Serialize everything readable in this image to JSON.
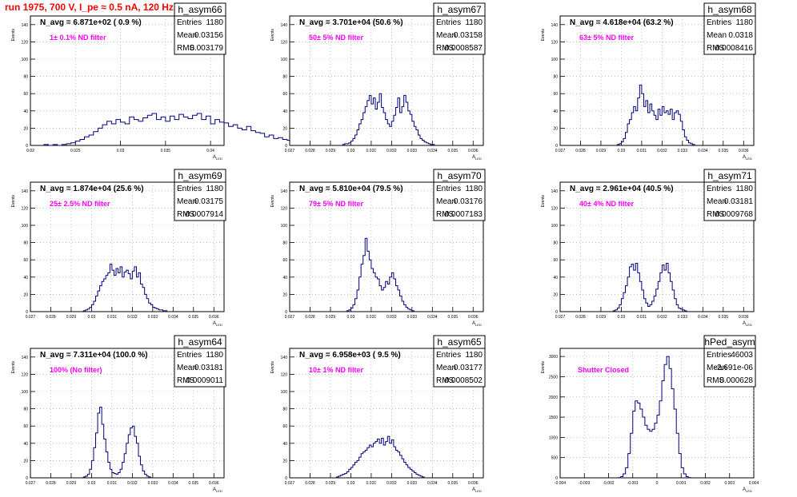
{
  "page_title": "run 1975,   700 V, I_pe ≈ 0.5 nA, 120 Hz",
  "colors": {
    "title": "#ff0000",
    "annotation": "#ff00ff",
    "histogram": "#000080",
    "grid": "#999999",
    "frame": "#000000"
  },
  "chart_data": [
    {
      "type": "bar",
      "title": "h_asym66",
      "nav_label": "N_avg = 6.871e+02 ( 0.9 %)",
      "annotation": "1± 0.1% ND filter",
      "ylabel": "Events",
      "xlabel": "A_LED",
      "stats": {
        "entries_label": "Entries",
        "entries": "1180",
        "mean_label": "Mean",
        "mean": "0.03156",
        "rms_label": "RMS",
        "rms": "0.003179"
      },
      "xlim": [
        0.02,
        0.0415
      ],
      "ylim": [
        0,
        150
      ],
      "xticks": [
        "0.02",
        "0.025",
        "0.03",
        "0.035",
        "0.04"
      ],
      "yticks": [
        "0",
        "20",
        "40",
        "60",
        "80",
        "100",
        "120",
        "140"
      ],
      "bin_start": 0.0215,
      "bin_width": 0.0005,
      "values": [
        1,
        0,
        1,
        0,
        1,
        2,
        3,
        5,
        7,
        10,
        12,
        16,
        20,
        24,
        28,
        25,
        30,
        27,
        25,
        33,
        30,
        28,
        32,
        35,
        37,
        30,
        33,
        28,
        34,
        30,
        36,
        33,
        31,
        35,
        37,
        30,
        34,
        25,
        30,
        27,
        26,
        22,
        24,
        20,
        18,
        22,
        17,
        15,
        14,
        10,
        12,
        8,
        9,
        7,
        6,
        5,
        4,
        3,
        3,
        2,
        1,
        1,
        0,
        1,
        0
      ]
    },
    {
      "type": "bar",
      "title": "h_asym67",
      "nav_label": "N_avg = 3.701e+04 (50.6 %)",
      "annotation": "50± 5% ND filter",
      "ylabel": "Events",
      "xlabel": "A_LED",
      "stats": {
        "entries_label": "Entries",
        "entries": "1180",
        "mean_label": "Mean",
        "mean": "0.03158",
        "rms_label": "RMS",
        "rms": "0.0008587"
      },
      "xlim": [
        0.027,
        0.0365
      ],
      "ylim": [
        0,
        150
      ],
      "xticks": [
        "0.027",
        "0.028",
        "0.029",
        "0.03",
        "0.031",
        "0.032",
        "0.033",
        "0.034",
        "0.035",
        "0.036"
      ],
      "yticks": [
        "0",
        "20",
        "40",
        "60",
        "80",
        "100",
        "120",
        "140"
      ],
      "bin_start": 0.0296,
      "bin_width": 0.0001,
      "values": [
        1,
        2,
        2,
        3,
        5,
        8,
        12,
        18,
        25,
        30,
        38,
        45,
        52,
        58,
        48,
        55,
        42,
        50,
        60,
        44,
        38,
        30,
        25,
        22,
        28,
        35,
        44,
        55,
        38,
        45,
        58,
        50,
        40,
        36,
        28,
        22,
        18,
        12,
        8,
        6,
        4,
        3,
        2,
        1,
        1
      ]
    },
    {
      "type": "bar",
      "title": "h_asym68",
      "nav_label": "N_avg = 4.618e+04 (63.2 %)",
      "annotation": "63± 5% ND filter",
      "ylabel": "Events",
      "xlabel": "A_LED",
      "stats": {
        "entries_label": "Entries",
        "entries": "1180",
        "mean_label": "Mean",
        "mean": "0.0318",
        "rms_label": "RMS",
        "rms": "0.0008416"
      },
      "xlim": [
        0.027,
        0.0365
      ],
      "ylim": [
        0,
        150
      ],
      "xticks": [
        "0.027",
        "0.028",
        "0.029",
        "0.03",
        "0.031",
        "0.032",
        "0.033",
        "0.034",
        "0.035",
        "0.036"
      ],
      "yticks": [
        "0",
        "20",
        "40",
        "60",
        "80",
        "100",
        "120",
        "140"
      ],
      "bin_start": 0.0298,
      "bin_width": 0.0001,
      "values": [
        1,
        2,
        4,
        8,
        15,
        25,
        30,
        38,
        45,
        40,
        55,
        70,
        60,
        45,
        52,
        38,
        48,
        40,
        35,
        30,
        42,
        35,
        45,
        38,
        40,
        36,
        42,
        30,
        38,
        40,
        36,
        28,
        18,
        10,
        6,
        3,
        2,
        1
      ]
    },
    {
      "type": "bar",
      "title": "h_asym69",
      "nav_label": "N_avg = 1.874e+04 (25.6 %)",
      "annotation": "25± 2.5% ND filter",
      "ylabel": "Events",
      "xlabel": "A_LED",
      "stats": {
        "entries_label": "Entries",
        "entries": "1180",
        "mean_label": "Mean",
        "mean": "0.03175",
        "rms_label": "RMS",
        "rms": "0.0007914"
      },
      "xlim": [
        0.027,
        0.0365
      ],
      "ylim": [
        0,
        150
      ],
      "xticks": [
        "0.027",
        "0.028",
        "0.029",
        "0.03",
        "0.031",
        "0.032",
        "0.033",
        "0.034",
        "0.035",
        "0.036"
      ],
      "yticks": [
        "0",
        "20",
        "40",
        "60",
        "80",
        "100",
        "120",
        "140"
      ],
      "bin_start": 0.0296,
      "bin_width": 0.0001,
      "values": [
        1,
        2,
        3,
        5,
        8,
        12,
        18,
        24,
        30,
        35,
        38,
        42,
        45,
        55,
        48,
        42,
        50,
        45,
        52,
        40,
        46,
        48,
        44,
        38,
        47,
        52,
        40,
        45,
        32,
        28,
        20,
        15,
        10,
        8,
        5,
        4,
        3,
        2,
        2,
        1,
        1
      ]
    },
    {
      "type": "bar",
      "title": "h_asym70",
      "nav_label": "N_avg = 5.810e+04 (79.5 %)",
      "annotation": "79± 5% ND filter",
      "ylabel": "Events",
      "xlabel": "A_LED",
      "stats": {
        "entries_label": "Entries",
        "entries": "1180",
        "mean_label": "Mean",
        "mean": "0.03176",
        "rms_label": "RMS",
        "rms": "0.0007183"
      },
      "xlim": [
        0.027,
        0.0365
      ],
      "ylim": [
        0,
        150
      ],
      "xticks": [
        "0.027",
        "0.028",
        "0.029",
        "0.03",
        "0.031",
        "0.032",
        "0.033",
        "0.034",
        "0.035",
        "0.036"
      ],
      "yticks": [
        "0",
        "20",
        "40",
        "60",
        "80",
        "100",
        "120",
        "140"
      ],
      "bin_start": 0.0298,
      "bin_width": 0.0001,
      "values": [
        1,
        2,
        4,
        8,
        15,
        25,
        40,
        55,
        65,
        85,
        70,
        60,
        50,
        45,
        40,
        38,
        30,
        25,
        28,
        35,
        32,
        40,
        45,
        38,
        30,
        25,
        18,
        12,
        8,
        5,
        3,
        2,
        1
      ]
    },
    {
      "type": "bar",
      "title": "h_asym71",
      "nav_label": "N_avg = 2.961e+04 (40.5 %)",
      "annotation": "40± 4% ND filter",
      "ylabel": "Events",
      "xlabel": "A_LED",
      "stats": {
        "entries_label": "Entries",
        "entries": "1180",
        "mean_label": "Mean",
        "mean": "0.03181",
        "rms_label": "RMS",
        "rms": "0.0009768"
      },
      "xlim": [
        0.027,
        0.0365
      ],
      "ylim": [
        0,
        150
      ],
      "xticks": [
        "0.027",
        "0.028",
        "0.029",
        "0.03",
        "0.031",
        "0.032",
        "0.033",
        "0.034",
        "0.035",
        "0.036"
      ],
      "yticks": [
        "0",
        "20",
        "40",
        "60",
        "80",
        "100",
        "120",
        "140"
      ],
      "bin_start": 0.0296,
      "bin_width": 0.0001,
      "values": [
        1,
        2,
        4,
        8,
        15,
        22,
        30,
        40,
        52,
        55,
        48,
        56,
        45,
        35,
        25,
        15,
        10,
        6,
        8,
        12,
        18,
        26,
        35,
        45,
        54,
        48,
        56,
        45,
        35,
        25,
        15,
        8,
        4,
        3,
        2,
        1
      ]
    },
    {
      "type": "bar",
      "title": "h_asym64",
      "nav_label": "N_avg = 7.311e+04 (100.0 %)",
      "annotation": "100% (No filter)",
      "ylabel": "Events",
      "xlabel": "A_LED",
      "stats": {
        "entries_label": "Entries",
        "entries": "1180",
        "mean_label": "Mean",
        "mean": "0.03181",
        "rms_label": "RMS",
        "rms": "0.0009011"
      },
      "xlim": [
        0.027,
        0.0365
      ],
      "ylim": [
        0,
        150
      ],
      "xticks": [
        "0.027",
        "0.028",
        "0.029",
        "0.03",
        "0.031",
        "0.032",
        "0.033",
        "0.034",
        "0.035",
        "0.036"
      ],
      "yticks": [
        "0",
        "20",
        "40",
        "60",
        "80",
        "100",
        "120",
        "140"
      ],
      "bin_start": 0.0296,
      "bin_width": 0.0001,
      "values": [
        1,
        2,
        4,
        10,
        20,
        35,
        52,
        75,
        82,
        62,
        45,
        30,
        18,
        10,
        6,
        5,
        4,
        6,
        10,
        18,
        28,
        40,
        50,
        58,
        60,
        48,
        40,
        25,
        15,
        8,
        4,
        2,
        1
      ]
    },
    {
      "type": "bar",
      "title": "h_asym65",
      "nav_label": "N_avg = 6.958e+03 ( 9.5 %)",
      "annotation": "10± 1% ND filter",
      "ylabel": "Events",
      "xlabel": "A_LED",
      "stats": {
        "entries_label": "Entries",
        "entries": "1180",
        "mean_label": "Mean",
        "mean": "0.03177",
        "rms_label": "RMS",
        "rms": "0.0008502"
      },
      "xlim": [
        0.027,
        0.0365
      ],
      "ylim": [
        0,
        150
      ],
      "xticks": [
        "0.027",
        "0.028",
        "0.029",
        "0.03",
        "0.031",
        "0.032",
        "0.033",
        "0.034",
        "0.035",
        "0.036"
      ],
      "yticks": [
        "0",
        "20",
        "40",
        "60",
        "80",
        "100",
        "120",
        "140"
      ],
      "bin_start": 0.0293,
      "bin_width": 0.0001,
      "values": [
        1,
        2,
        3,
        4,
        5,
        7,
        10,
        12,
        15,
        18,
        20,
        24,
        28,
        30,
        32,
        35,
        38,
        36,
        40,
        42,
        45,
        40,
        46,
        38,
        42,
        48,
        40,
        44,
        36,
        32,
        30,
        26,
        22,
        18,
        15,
        12,
        10,
        8,
        6,
        4,
        3,
        2,
        1
      ]
    },
    {
      "type": "bar",
      "title": "hPed_asym",
      "nav_label": "",
      "annotation": "Shutter Closed",
      "ylabel": "Events",
      "xlabel": "A_LED",
      "stats": {
        "entries_label": "Entries",
        "entries": "46003",
        "mean_label": "Mean",
        "mean": "-2.691e-06",
        "rms_label": "RMS",
        "rms": "0.000628"
      },
      "xlim": [
        -0.004,
        0.004
      ],
      "ylim": [
        0,
        3200
      ],
      "xticks": [
        "-0.004",
        "-0.003",
        "-0.002",
        "-0.001",
        "0",
        "0.001",
        "0.002",
        "0.003",
        "0.004"
      ],
      "yticks": [
        "0",
        "500",
        "1000",
        "1500",
        "2000",
        "2500",
        "3000"
      ],
      "bin_start": -0.0016,
      "bin_width": 0.0001,
      "values": [
        5,
        30,
        100,
        250,
        600,
        1100,
        1650,
        1900,
        1850,
        1700,
        1500,
        1300,
        1200,
        1150,
        1200,
        1350,
        1550,
        1900,
        2400,
        2800,
        3000,
        2700,
        2200,
        1700,
        1100,
        600,
        250,
        100,
        30,
        5
      ]
    }
  ]
}
